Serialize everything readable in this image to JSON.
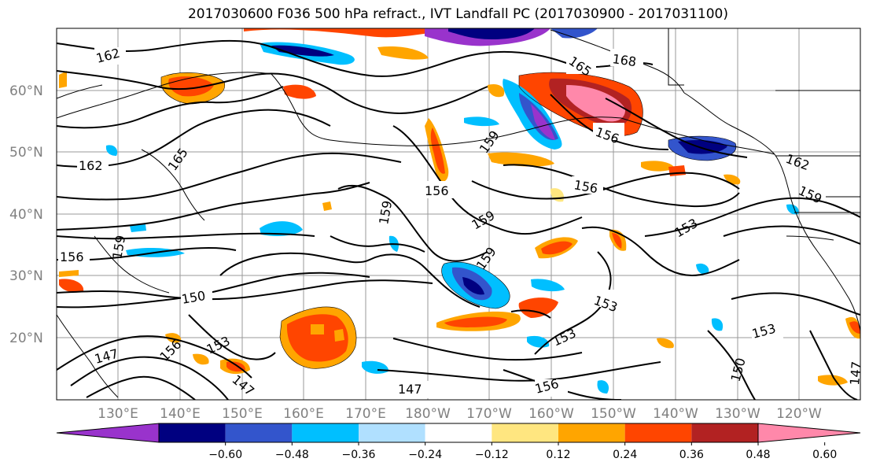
{
  "title": "2017030600 F036 500 hPa refract., IVT Landfall PC (2017030900 - 2017031100)",
  "lat_labels": [
    "60°N",
    "50°N",
    "40°N",
    "30°N",
    "20°N"
  ],
  "lon_labels": [
    "130°E",
    "140°E",
    "150°E",
    "160°E",
    "170°E",
    "180°W",
    "170°W",
    "160°W",
    "150°W",
    "140°W",
    "130°W",
    "120°W"
  ],
  "colorbar": {
    "ticks": [
      "−0.60",
      "−0.48",
      "−0.36",
      "−0.24",
      "−0.12",
      "0.12",
      "0.24",
      "0.36",
      "0.48",
      "0.60"
    ],
    "colors": [
      "#9933cc",
      "#000080",
      "#3355cc",
      "#00bfff",
      "#b0e0ff",
      "#ffffff",
      "#ffe680",
      "#ffa500",
      "#ff4500",
      "#b22222",
      "#ff88aa"
    ]
  },
  "contour_labels": [
    {
      "text": "162"
    },
    {
      "text": "165"
    },
    {
      "text": "168"
    },
    {
      "text": "162"
    },
    {
      "text": "165"
    },
    {
      "text": "156"
    },
    {
      "text": "159"
    },
    {
      "text": "156"
    },
    {
      "text": "156"
    },
    {
      "text": "159"
    },
    {
      "text": "159"
    },
    {
      "text": "159"
    },
    {
      "text": "159"
    },
    {
      "text": "156"
    },
    {
      "text": "150"
    },
    {
      "text": "153"
    },
    {
      "text": "153"
    },
    {
      "text": "153"
    },
    {
      "text": "153"
    },
    {
      "text": "150"
    },
    {
      "text": "147"
    },
    {
      "text": "147"
    },
    {
      "text": "147"
    },
    {
      "text": "156"
    },
    {
      "text": "153"
    },
    {
      "text": "156"
    },
    {
      "text": "162"
    },
    {
      "text": "159"
    },
    {
      "text": "147"
    }
  ]
}
